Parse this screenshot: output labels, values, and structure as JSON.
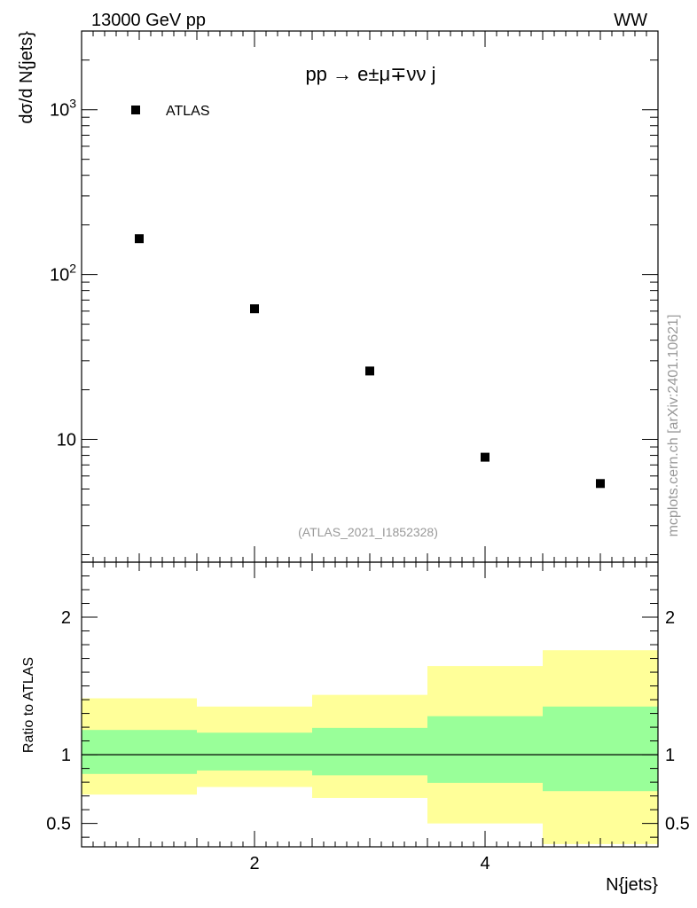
{
  "header": {
    "energy_label": "13000 GeV pp",
    "process_tag": "WW"
  },
  "side_label": "mcplots.cern.ch [arXiv:2401.10621]",
  "chart_data": [
    {
      "type": "scatter",
      "panel": "main",
      "title": "pp → e±μ∓νν j",
      "ylabel": "dσ/d N{jets}",
      "yscale": "log",
      "ylim": [
        1.8,
        3000
      ],
      "xlim": [
        0.5,
        5.5
      ],
      "y_tick_labels": [
        "10",
        "10^2",
        "10^3"
      ],
      "legend": {
        "position": "top-left",
        "entries": [
          "ATLAS"
        ]
      },
      "watermark": "(ATLAS_2021_I1852328)",
      "series": [
        {
          "name": "ATLAS",
          "x": [
            1,
            2,
            3,
            4,
            5
          ],
          "y": [
            165,
            62,
            26,
            7.8,
            5.4
          ]
        }
      ]
    },
    {
      "type": "area",
      "panel": "ratio",
      "ylabel": "Ratio to ATLAS",
      "xlabel": "N{jets}",
      "ylim": [
        0.33,
        2.4
      ],
      "xlim": [
        0.5,
        5.5
      ],
      "x_tick_labels": [
        "2",
        "4"
      ],
      "y_tick_labels": [
        "0.5",
        "1",
        "2"
      ],
      "reference_line": 1,
      "bins": [
        {
          "xlow": 0.5,
          "xhigh": 1.5,
          "inner": [
            0.86,
            1.18
          ],
          "outer": [
            0.71,
            1.41
          ]
        },
        {
          "xlow": 1.5,
          "xhigh": 2.5,
          "inner": [
            0.885,
            1.16
          ],
          "outer": [
            0.765,
            1.35
          ]
        },
        {
          "xlow": 2.5,
          "xhigh": 3.5,
          "inner": [
            0.85,
            1.195
          ],
          "outer": [
            0.685,
            1.435
          ]
        },
        {
          "xlow": 3.5,
          "xhigh": 4.5,
          "inner": [
            0.795,
            1.28
          ],
          "outer": [
            0.5,
            1.645
          ]
        },
        {
          "xlow": 4.5,
          "xhigh": 5.5,
          "inner": [
            0.735,
            1.35
          ],
          "outer": [
            0.35,
            1.76
          ]
        }
      ]
    }
  ]
}
